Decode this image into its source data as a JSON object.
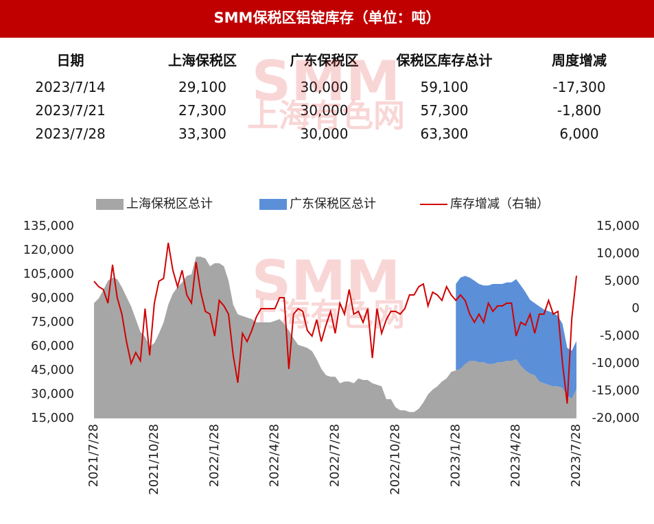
{
  "title": "SMM保税区铝锭库存（单位：吨）",
  "watermark": [
    "SMM",
    "上海有色网"
  ],
  "table": {
    "header": [
      "日期",
      "上海保税区",
      "广东保税区",
      "保税区库存总计",
      "周度增减"
    ],
    "rows": [
      [
        "2023/7/14",
        "29,100",
        "30,000",
        "59,100",
        "-17,300"
      ],
      [
        "2023/7/21",
        "27,300",
        "30,000",
        "57,300",
        "-1,800"
      ],
      [
        "2023/7/28",
        "33,300",
        "30,000",
        "63,300",
        "6,000"
      ]
    ]
  },
  "chart_data": {
    "type": "combo",
    "categories": [
      "2021/7/28",
      null,
      null,
      null,
      null,
      null,
      null,
      null,
      null,
      null,
      null,
      null,
      null,
      "2021/10/28",
      null,
      null,
      null,
      null,
      null,
      null,
      null,
      null,
      null,
      null,
      null,
      null,
      "2022/1/28",
      null,
      null,
      null,
      null,
      null,
      null,
      null,
      null,
      null,
      null,
      null,
      null,
      "2022/4/28",
      null,
      null,
      null,
      null,
      null,
      null,
      null,
      null,
      null,
      null,
      null,
      null,
      "2022/7/28",
      null,
      null,
      null,
      null,
      null,
      null,
      null,
      null,
      null,
      null,
      null,
      null,
      "2022/10/28",
      null,
      null,
      null,
      null,
      null,
      null,
      null,
      null,
      null,
      null,
      null,
      null,
      "2023/1/28",
      null,
      null,
      null,
      null,
      null,
      null,
      null,
      null,
      null,
      null,
      null,
      null,
      "2023/4/28",
      null,
      null,
      null,
      null,
      null,
      null,
      null,
      null,
      null,
      null,
      null,
      null,
      "2023/7/28"
    ],
    "series": [
      {
        "name": "上海保税区总计",
        "type": "area",
        "color": "#a6a6a6",
        "values": [
          87000,
          90000,
          95000,
          101000,
          103000,
          102000,
          97000,
          91000,
          85000,
          77000,
          69000,
          66000,
          60000,
          62000,
          68000,
          75000,
          86000,
          93000,
          97000,
          100000,
          104000,
          105000,
          116000,
          116000,
          115000,
          110000,
          112000,
          112000,
          110000,
          101000,
          86000,
          80000,
          79000,
          78000,
          77000,
          75000,
          75000,
          75000,
          75000,
          76000,
          77000,
          74000,
          70000,
          65000,
          61000,
          60000,
          59000,
          57000,
          52000,
          46000,
          42000,
          41000,
          41000,
          37000,
          38000,
          38000,
          37000,
          40000,
          39000,
          39000,
          37000,
          36000,
          35000,
          27000,
          27000,
          22000,
          20000,
          20000,
          19000,
          19000,
          21000,
          25000,
          30000,
          33000,
          35000,
          38000,
          40000,
          44000,
          45000,
          46000,
          49000,
          51000,
          51000,
          50000,
          50000,
          49000,
          49000,
          50000,
          50000,
          51000,
          51000,
          52000,
          48000,
          45000,
          43000,
          42000,
          38000,
          37000,
          36000,
          35000,
          35000,
          34000,
          29100,
          27300,
          33300
        ]
      },
      {
        "name": "广东保税区总计",
        "type": "area",
        "stacked": true,
        "color": "#5b8fd8",
        "values": [
          null,
          null,
          null,
          null,
          null,
          null,
          null,
          null,
          null,
          null,
          null,
          null,
          null,
          null,
          null,
          null,
          null,
          null,
          null,
          null,
          null,
          null,
          null,
          null,
          null,
          null,
          null,
          null,
          null,
          null,
          null,
          null,
          null,
          null,
          null,
          null,
          null,
          null,
          null,
          null,
          null,
          null,
          null,
          null,
          null,
          null,
          null,
          null,
          null,
          null,
          null,
          null,
          null,
          null,
          null,
          null,
          null,
          null,
          null,
          null,
          null,
          null,
          null,
          null,
          null,
          null,
          null,
          null,
          null,
          null,
          null,
          null,
          null,
          null,
          null,
          null,
          null,
          null,
          54000,
          57000,
          55000,
          52000,
          50000,
          49000,
          48000,
          49000,
          50000,
          49000,
          49000,
          49000,
          49000,
          50000,
          50000,
          49000,
          46000,
          45000,
          47000,
          46000,
          46000,
          46000,
          44000,
          40000,
          30000,
          30000,
          30000
        ]
      },
      {
        "name": "库存增减（右轴）",
        "type": "line",
        "axis": "y2",
        "color": "#d00000",
        "values": [
          5000,
          4000,
          3500,
          1000,
          8000,
          2000,
          -1000,
          -6000,
          -10000,
          -8000,
          -9500,
          0,
          -8500,
          1000,
          5000,
          5500,
          12000,
          7000,
          4000,
          7000,
          2500,
          1000,
          8500,
          3000,
          -500,
          -1000,
          -5000,
          1500,
          500,
          -1000,
          -8500,
          -13500,
          -4500,
          -6000,
          -4000,
          -1500,
          0,
          0,
          0,
          0,
          2000,
          2000,
          -11000,
          -1000,
          0,
          -500,
          -4000,
          -5000,
          -2000,
          -6000,
          -3000,
          -500,
          -4500,
          1000,
          -1000,
          3500,
          -1000,
          -500,
          -2500,
          0,
          -9000,
          0,
          -4500,
          -2000,
          -500,
          -500,
          -1000,
          0,
          2500,
          2500,
          4000,
          4500,
          500,
          3000,
          2500,
          1500,
          4000,
          2500,
          1500,
          2500,
          1500,
          -1000,
          -2500,
          -1000,
          -2500,
          1000,
          -500,
          500,
          500,
          1000,
          1000,
          -5000,
          -2500,
          -3000,
          -1000,
          -4500,
          -1000,
          -1000,
          1500,
          -1000,
          -500,
          -10000,
          -17300,
          -1800,
          6000
        ]
      }
    ],
    "ylim": [
      15000,
      135000
    ],
    "yticks": [
      {
        "value": 15000,
        "label": "15,000"
      },
      {
        "value": 30000,
        "label": "30,000"
      },
      {
        "value": 45000,
        "label": "45,000"
      },
      {
        "value": 60000,
        "label": "60,000"
      },
      {
        "value": 75000,
        "label": "75,000"
      },
      {
        "value": 90000,
        "label": "90,000"
      },
      {
        "value": 105000,
        "label": "105,000"
      },
      {
        "value": 120000,
        "label": "120,000"
      },
      {
        "value": 135000,
        "label": "135,000"
      }
    ],
    "y2lim": [
      -20000,
      15000
    ],
    "y2ticks": [
      {
        "value": -20000,
        "label": "-20,000"
      },
      {
        "value": -15000,
        "label": "-15,000"
      },
      {
        "value": -10000,
        "label": "-10,000"
      },
      {
        "value": -5000,
        "label": "-5,000"
      },
      0,
      {
        "value": 5000,
        "label": "5,000"
      },
      {
        "value": 10000,
        "label": "10,000"
      },
      {
        "value": 15000,
        "label": "15,000"
      }
    ],
    "legend": "top"
  }
}
